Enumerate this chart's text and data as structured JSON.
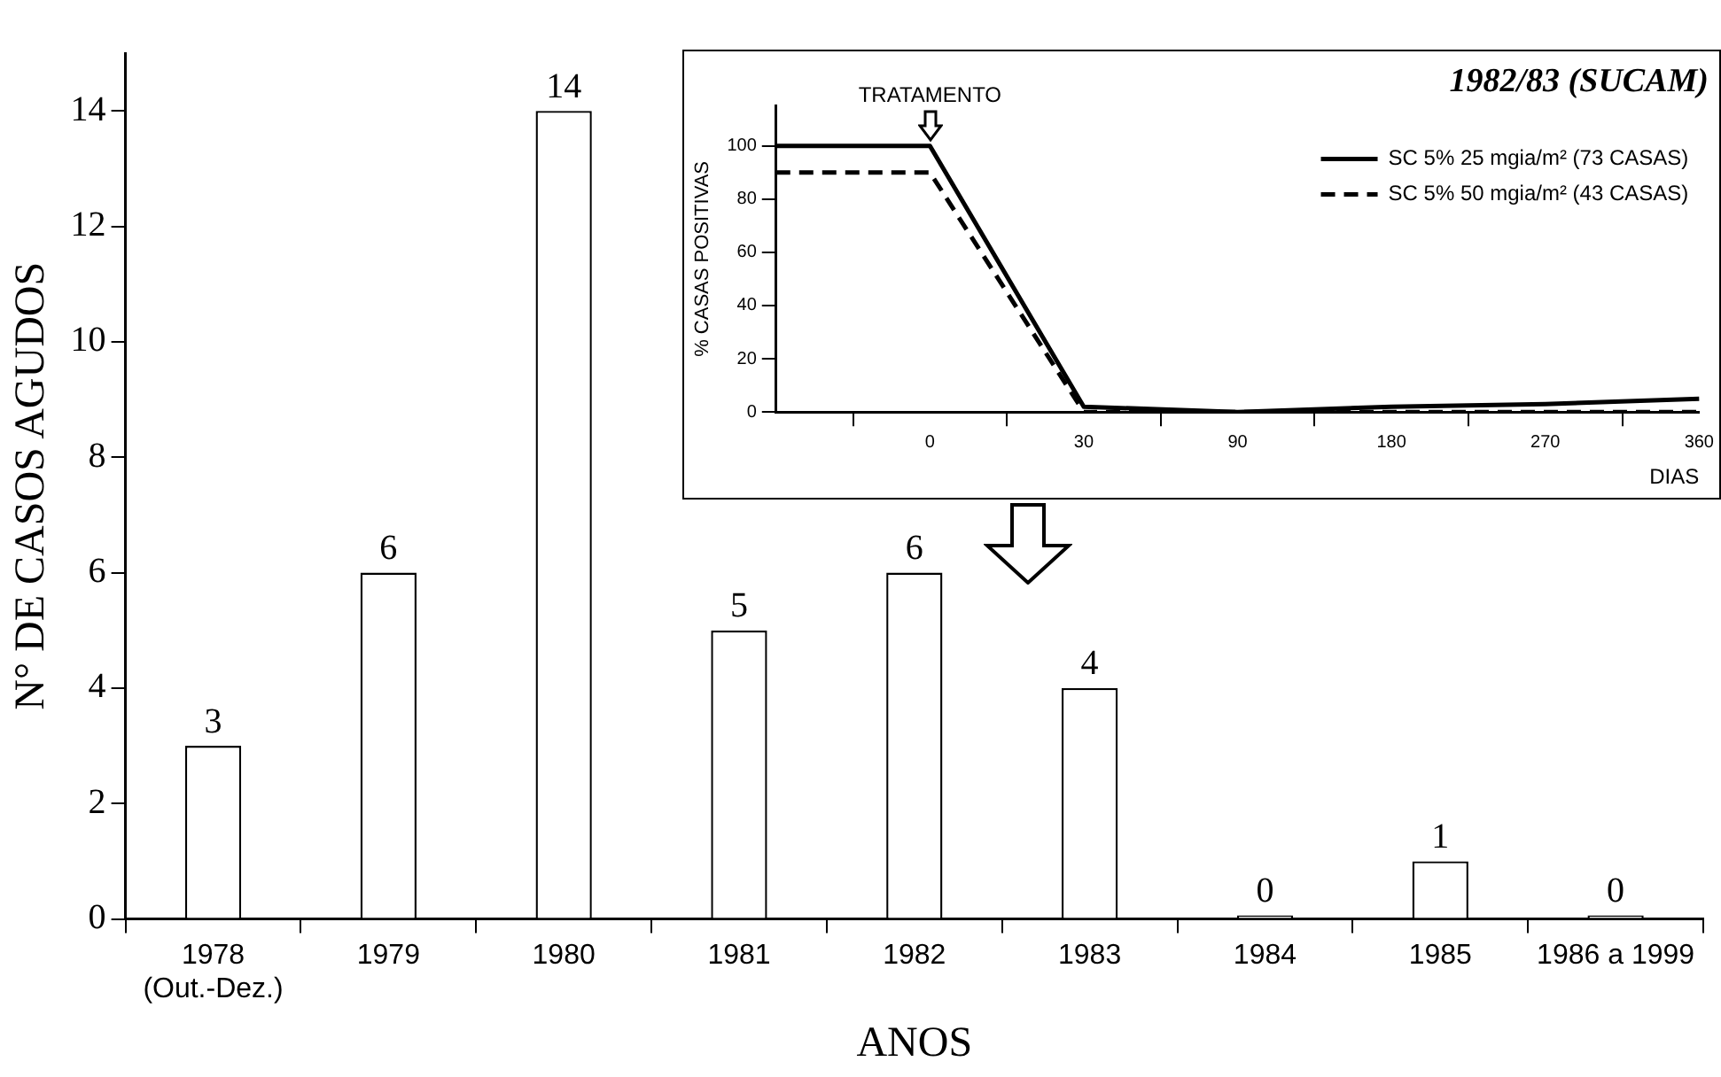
{
  "chart_data": [
    {
      "type": "bar",
      "xlabel": "ANOS",
      "ylabel": "N° DE CASOS AGUDOS",
      "categories": [
        "1978\n(Out.-Dez.)",
        "1979",
        "1980",
        "1981",
        "1982",
        "1983",
        "1984",
        "1985",
        "1986 a 1999"
      ],
      "values": [
        3,
        6,
        14,
        5,
        6,
        4,
        0,
        1,
        0
      ],
      "color": "#ffffff",
      "ylim": [
        0,
        15
      ],
      "yticks": [
        0,
        2,
        4,
        6,
        8,
        10,
        12,
        14
      ],
      "data_labels": true,
      "grid": false,
      "legend": false
    },
    {
      "type": "line",
      "title": "1982/83 (SUCAM)",
      "xlabel": "DIAS",
      "ylabel": "% CASAS POSITIVAS",
      "categories": [
        null,
        "0",
        "30",
        "90",
        "180",
        "270",
        "360"
      ],
      "series": [
        {
          "name": "SC 5% 25 mgia/m² (73 CASAS)",
          "color": "#000000",
          "line_style": "solid",
          "values": [
            100,
            100,
            2,
            0,
            2,
            3,
            5
          ]
        },
        {
          "name": "SC 5% 50 mgia/m² (43 CASAS)",
          "color": "#000000",
          "line_style": "dashed",
          "values": [
            90,
            90,
            0,
            0,
            0,
            0,
            0
          ]
        }
      ],
      "ylim": [
        0,
        115
      ],
      "yticks": [
        0,
        20,
        40,
        60,
        80,
        100
      ],
      "grid": false,
      "legend": "top right",
      "marker": "none",
      "annotations": [
        {
          "text": "TRATAMENTO",
          "x": "0",
          "y": 100
        }
      ]
    }
  ]
}
